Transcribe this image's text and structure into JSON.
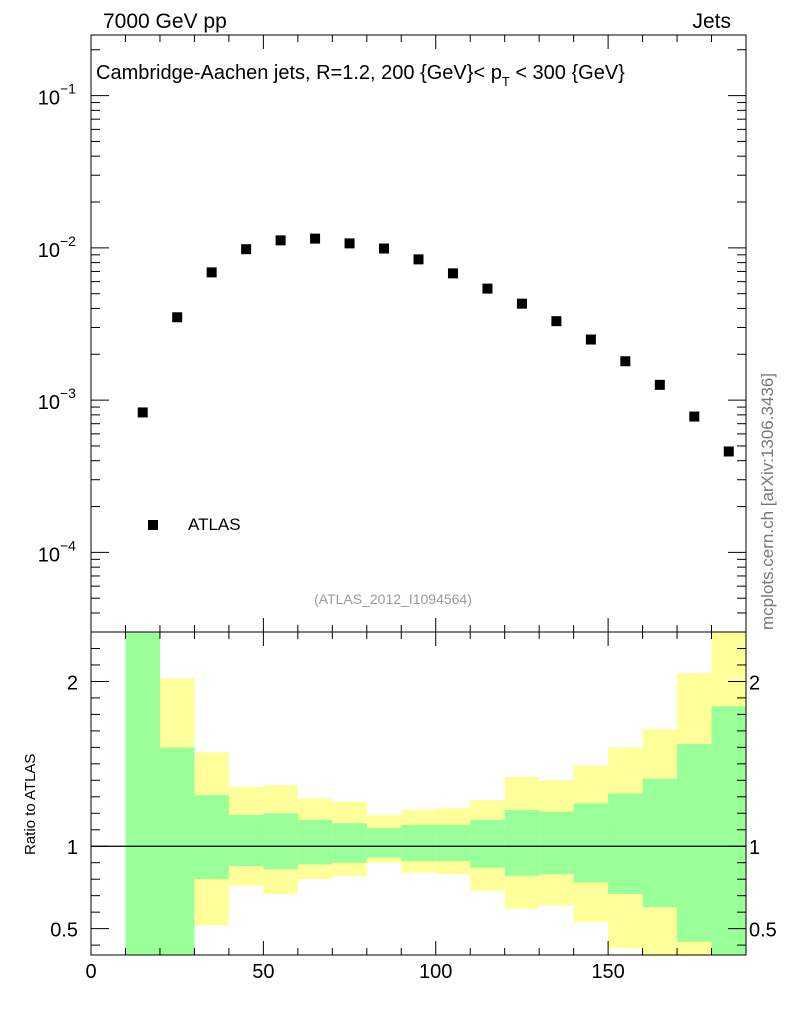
{
  "header": {
    "left": "7000 GeV pp",
    "right": "Jets"
  },
  "panel_title": {
    "main": "Cambridge-Aachen jets, R=1.2,  200 {GeV}< p",
    "sub": "T",
    "tail": " < 300 {GeV}"
  },
  "side_label": "mcplots.cern.ch [arXiv:1306.3436]",
  "reference_label": "(ATLAS_2012_I1094564)",
  "legend": {
    "entry": "ATLAS"
  },
  "ratio_ylabel": "Ratio to ATLAS",
  "chart_data": [
    {
      "type": "scatter",
      "yscale": "log",
      "ylim": [
        3e-05,
        0.25
      ],
      "xlim": [
        0,
        190
      ],
      "series": [
        {
          "name": "ATLAS",
          "x": [
            15,
            25,
            35,
            45,
            55,
            65,
            75,
            85,
            95,
            105,
            115,
            125,
            135,
            145,
            155,
            165,
            175,
            185
          ],
          "values": [
            0.00083,
            0.0035,
            0.0069,
            0.0098,
            0.0112,
            0.0115,
            0.0107,
            0.0099,
            0.0084,
            0.0068,
            0.0054,
            0.0043,
            0.0033,
            0.0025,
            0.0018,
            0.00126,
            0.00078,
            0.00046
          ]
        }
      ],
      "y_tick_labels": [
        "10^-4",
        "10^-3",
        "10^-2",
        "10^-1"
      ],
      "y_tick_values": [
        0.0001,
        0.001,
        0.01,
        0.1
      ],
      "marker_color": "#000000"
    },
    {
      "type": "area",
      "xlim": [
        0,
        190
      ],
      "ylim": [
        0.34,
        2.3
      ],
      "xlabel": "",
      "ylabel": "Ratio to ATLAS",
      "bin_edges": [
        10,
        20,
        30,
        40,
        50,
        60,
        70,
        80,
        90,
        100,
        110,
        120,
        130,
        140,
        150,
        160,
        170,
        180,
        190
      ],
      "bands": [
        {
          "color": "#ffff99",
          "upper": [
            2.3,
            2.02,
            1.57,
            1.36,
            1.37,
            1.29,
            1.27,
            1.19,
            1.22,
            1.23,
            1.28,
            1.42,
            1.4,
            1.49,
            1.6,
            1.71,
            2.05,
            2.3
          ],
          "lower": [
            0.34,
            0.48,
            0.52,
            0.76,
            0.71,
            0.8,
            0.82,
            0.9,
            0.84,
            0.83,
            0.73,
            0.62,
            0.64,
            0.54,
            0.38,
            0.34,
            0.34,
            0.34
          ]
        },
        {
          "color": "#99ff99",
          "upper": [
            2.3,
            1.6,
            1.31,
            1.19,
            1.2,
            1.16,
            1.14,
            1.11,
            1.13,
            1.13,
            1.16,
            1.22,
            1.21,
            1.26,
            1.32,
            1.41,
            1.62,
            1.85
          ],
          "lower": [
            0.34,
            0.34,
            0.8,
            0.88,
            0.86,
            0.89,
            0.9,
            0.93,
            0.91,
            0.91,
            0.87,
            0.82,
            0.83,
            0.78,
            0.71,
            0.63,
            0.42,
            0.34
          ]
        }
      ],
      "reference_line": 1,
      "y_tick_values": [
        0.5,
        1,
        2
      ],
      "y_tick_labels": [
        "0.5",
        "1",
        "2"
      ],
      "x_tick_values": [
        0,
        50,
        100,
        150
      ],
      "x_tick_labels": [
        "0",
        "50",
        "100",
        "150"
      ]
    }
  ]
}
